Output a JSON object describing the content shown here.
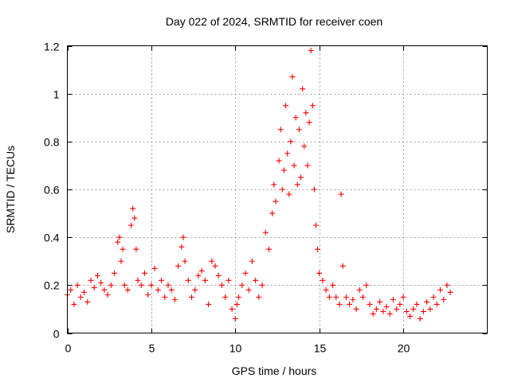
{
  "chart_data": {
    "type": "scatter",
    "title": "Day 022 of 2024, SRMTID for receiver coen",
    "xlabel": "GPS time / hours",
    "ylabel": "SRMTID / TECUs",
    "xlim": [
      0,
      25
    ],
    "ylim": [
      0,
      1.2
    ],
    "grid": true,
    "marker": "+",
    "series": [
      {
        "name": "SRMTID",
        "color": "#ff0000",
        "x": [
          0.0,
          0.2,
          0.4,
          0.6,
          0.8,
          1.0,
          1.2,
          1.4,
          1.6,
          1.8,
          2.0,
          2.2,
          2.4,
          2.6,
          2.8,
          3.0,
          3.1,
          3.2,
          3.3,
          3.4,
          3.6,
          3.8,
          3.9,
          4.0,
          4.1,
          4.2,
          4.4,
          4.6,
          4.8,
          5.0,
          5.2,
          5.4,
          5.6,
          5.8,
          6.0,
          6.2,
          6.4,
          6.6,
          6.8,
          6.9,
          7.0,
          7.2,
          7.4,
          7.6,
          7.8,
          8.0,
          8.2,
          8.4,
          8.6,
          8.8,
          9.0,
          9.2,
          9.4,
          9.6,
          9.8,
          10.0,
          10.1,
          10.2,
          10.4,
          10.6,
          10.8,
          11.0,
          11.2,
          11.4,
          11.6,
          11.8,
          12.0,
          12.2,
          12.3,
          12.4,
          12.6,
          12.7,
          12.8,
          12.9,
          13.0,
          13.1,
          13.2,
          13.3,
          13.4,
          13.5,
          13.6,
          13.7,
          13.8,
          13.9,
          14.0,
          14.1,
          14.2,
          14.3,
          14.4,
          14.5,
          14.6,
          14.7,
          14.8,
          14.9,
          15.0,
          15.2,
          15.4,
          15.6,
          15.8,
          16.0,
          16.2,
          16.3,
          16.4,
          16.6,
          16.8,
          17.0,
          17.2,
          17.4,
          17.6,
          17.8,
          18.0,
          18.2,
          18.4,
          18.6,
          18.8,
          19.0,
          19.2,
          19.4,
          19.6,
          19.8,
          20.0,
          20.2,
          20.4,
          20.6,
          20.8,
          21.0,
          21.2,
          21.4,
          21.6,
          21.8,
          22.0,
          22.2,
          22.4,
          22.6,
          22.8
        ],
        "y": [
          0.16,
          0.18,
          0.12,
          0.2,
          0.15,
          0.17,
          0.13,
          0.22,
          0.19,
          0.24,
          0.21,
          0.18,
          0.16,
          0.2,
          0.25,
          0.38,
          0.4,
          0.3,
          0.35,
          0.2,
          0.18,
          0.45,
          0.52,
          0.48,
          0.35,
          0.22,
          0.2,
          0.25,
          0.16,
          0.2,
          0.27,
          0.18,
          0.22,
          0.15,
          0.2,
          0.18,
          0.14,
          0.28,
          0.36,
          0.4,
          0.3,
          0.22,
          0.15,
          0.18,
          0.24,
          0.26,
          0.22,
          0.12,
          0.3,
          0.28,
          0.24,
          0.2,
          0.15,
          0.22,
          0.1,
          0.06,
          0.12,
          0.15,
          0.2,
          0.25,
          0.18,
          0.3,
          0.22,
          0.15,
          0.2,
          0.42,
          0.35,
          0.5,
          0.62,
          0.55,
          0.72,
          0.85,
          0.6,
          0.68,
          0.95,
          0.75,
          0.58,
          0.8,
          1.07,
          0.7,
          0.9,
          0.62,
          0.85,
          0.65,
          1.02,
          0.78,
          0.92,
          0.7,
          0.88,
          1.18,
          0.95,
          0.6,
          0.45,
          0.35,
          0.25,
          0.22,
          0.18,
          0.15,
          0.2,
          0.15,
          0.12,
          0.58,
          0.28,
          0.15,
          0.12,
          0.14,
          0.1,
          0.18,
          0.15,
          0.2,
          0.12,
          0.08,
          0.1,
          0.13,
          0.09,
          0.11,
          0.08,
          0.14,
          0.1,
          0.12,
          0.15,
          0.09,
          0.07,
          0.1,
          0.12,
          0.06,
          0.09,
          0.13,
          0.1,
          0.15,
          0.12,
          0.18,
          0.14,
          0.2,
          0.17
        ]
      }
    ]
  }
}
